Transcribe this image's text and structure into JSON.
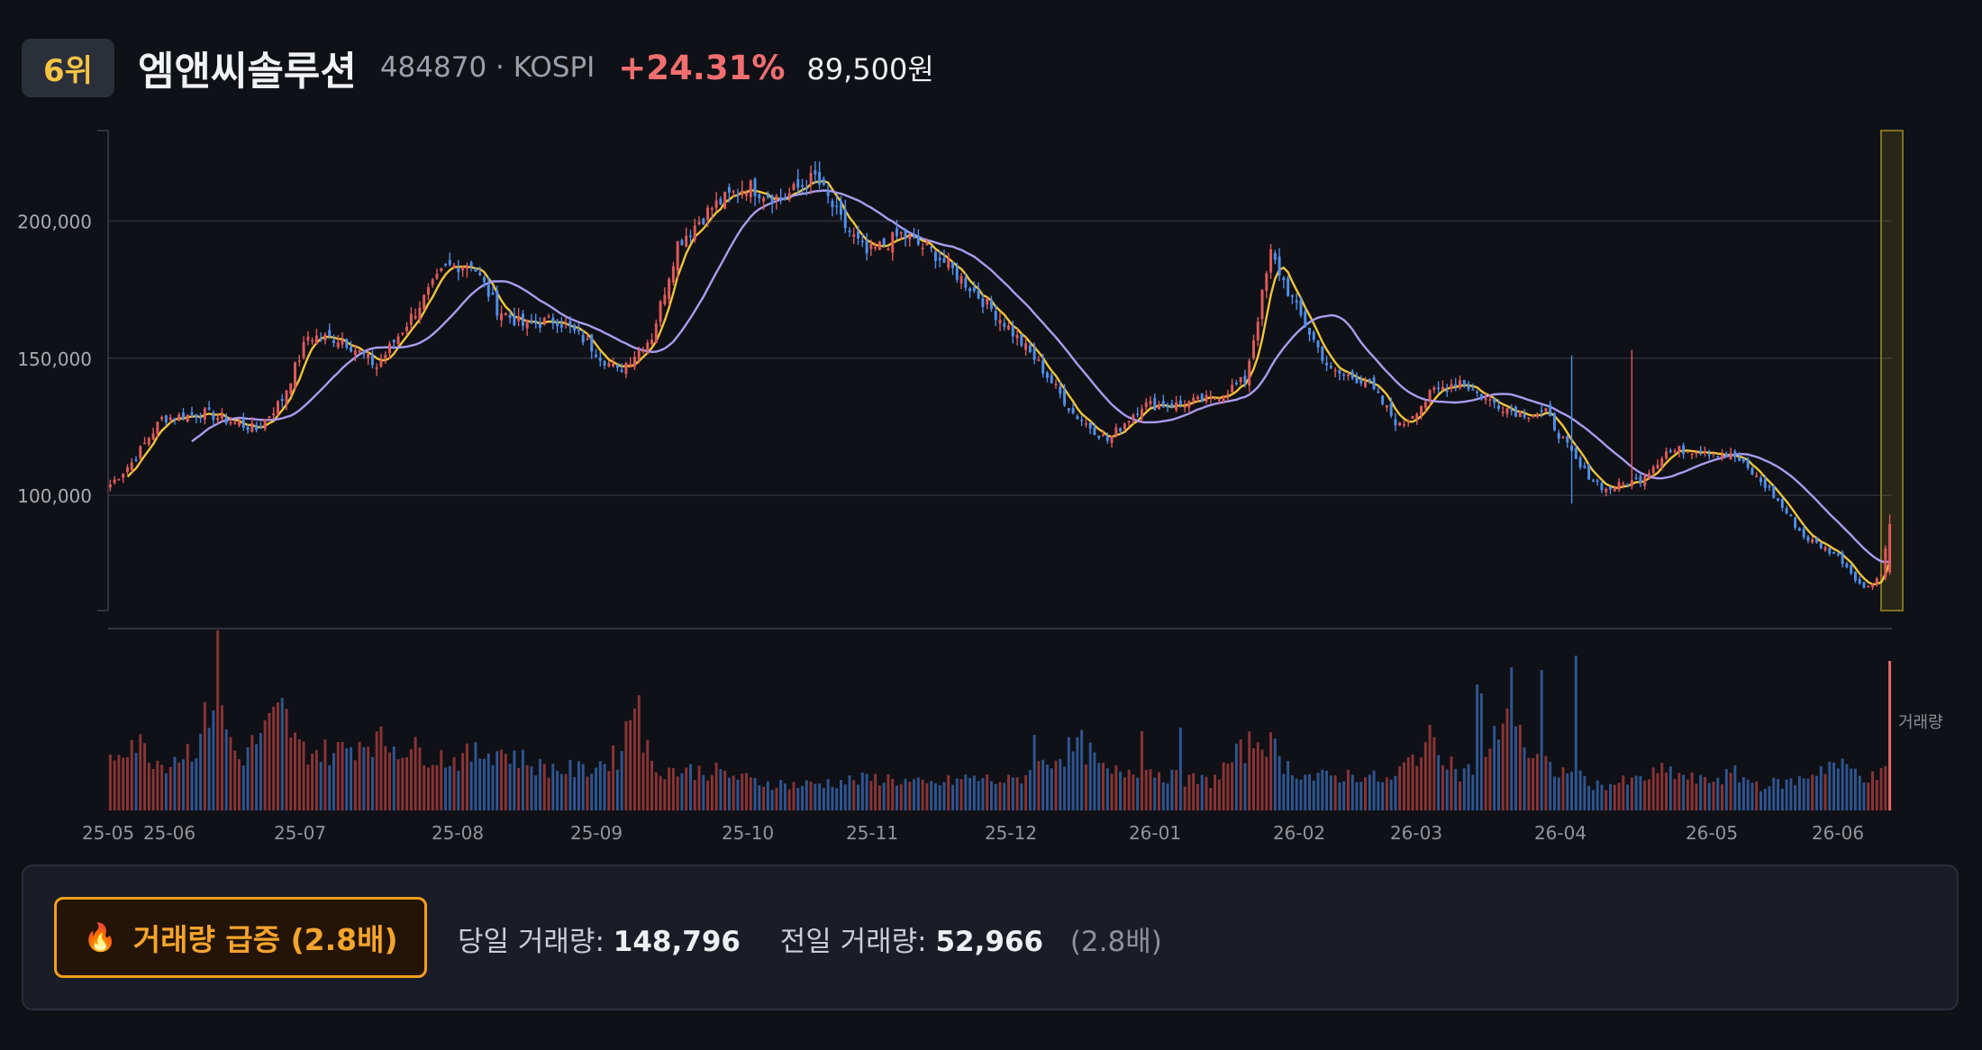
{
  "header": {
    "rank": "6위",
    "name": "엠앤씨솔루션",
    "code": "484870 · KOSPI",
    "change": "+24.31%",
    "price": "89,500원"
  },
  "colors": {
    "up": "#e05a5a",
    "down": "#4f8fea",
    "ma_short": "#f0c43a",
    "ma_long": "#a99cf0"
  },
  "chart_data": {
    "type": "candlestick",
    "x_ticks": [
      "25-05",
      "25-06",
      "25-07",
      "25-08",
      "25-09",
      "25-10",
      "25-11",
      "25-12",
      "26-01",
      "26-02",
      "26-03",
      "26-04",
      "26-05",
      "26-06"
    ],
    "y_ticks": [
      100000,
      150000,
      200000
    ],
    "y_tick_labels": [
      "100,000",
      "150,000",
      "200,000"
    ],
    "ylim": [
      58000,
      233000
    ],
    "volume_label": "거래량",
    "highlight_last": true,
    "series": [
      {
        "name": "MA-short",
        "type": "line"
      },
      {
        "name": "MA-long",
        "type": "line"
      }
    ],
    "close_anchors": [
      [
        0,
        104000
      ],
      [
        5,
        112000
      ],
      [
        12,
        128000
      ],
      [
        22,
        130000
      ],
      [
        34,
        124000
      ],
      [
        40,
        135000
      ],
      [
        46,
        158000
      ],
      [
        54,
        157000
      ],
      [
        62,
        147000
      ],
      [
        70,
        165000
      ],
      [
        78,
        183000
      ],
      [
        84,
        185000
      ],
      [
        90,
        168000
      ],
      [
        96,
        162000
      ],
      [
        104,
        164000
      ],
      [
        110,
        157000
      ],
      [
        118,
        145000
      ],
      [
        126,
        158000
      ],
      [
        132,
        192000
      ],
      [
        140,
        205000
      ],
      [
        148,
        213000
      ],
      [
        156,
        208000
      ],
      [
        164,
        216000
      ],
      [
        170,
        200000
      ],
      [
        176,
        188000
      ],
      [
        184,
        195000
      ],
      [
        192,
        188000
      ],
      [
        200,
        176000
      ],
      [
        208,
        163000
      ],
      [
        216,
        148000
      ],
      [
        224,
        130000
      ],
      [
        232,
        120000
      ],
      [
        240,
        133000
      ],
      [
        248,
        133000
      ],
      [
        256,
        135000
      ],
      [
        264,
        142000
      ],
      [
        270,
        188000
      ],
      [
        276,
        168000
      ],
      [
        284,
        145000
      ],
      [
        292,
        142000
      ],
      [
        300,
        125000
      ],
      [
        308,
        138000
      ],
      [
        314,
        142000
      ],
      [
        320,
        135000
      ],
      [
        328,
        130000
      ],
      [
        334,
        130000
      ],
      [
        342,
        110000
      ],
      [
        348,
        102000
      ],
      [
        356,
        106000
      ],
      [
        362,
        116000
      ],
      [
        370,
        117000
      ],
      [
        378,
        114000
      ],
      [
        386,
        102000
      ],
      [
        394,
        85000
      ],
      [
        402,
        78000
      ],
      [
        408,
        66000
      ],
      [
        412,
        71000
      ],
      [
        414,
        90000
      ]
    ],
    "volume_anchors": [
      [
        0,
        0.3
      ],
      [
        5,
        0.4
      ],
      [
        12,
        0.26
      ],
      [
        20,
        0.36
      ],
      [
        24,
        0.62
      ],
      [
        27,
        0.45
      ],
      [
        30,
        0.28
      ],
      [
        40,
        0.55
      ],
      [
        44,
        0.34
      ],
      [
        52,
        0.32
      ],
      [
        60,
        0.4
      ],
      [
        70,
        0.34
      ],
      [
        80,
        0.28
      ],
      [
        90,
        0.34
      ],
      [
        100,
        0.24
      ],
      [
        110,
        0.22
      ],
      [
        118,
        0.3
      ],
      [
        122,
        0.6
      ],
      [
        126,
        0.24
      ],
      [
        132,
        0.22
      ],
      [
        140,
        0.22
      ],
      [
        150,
        0.16
      ],
      [
        160,
        0.14
      ],
      [
        170,
        0.16
      ],
      [
        180,
        0.18
      ],
      [
        190,
        0.14
      ],
      [
        200,
        0.18
      ],
      [
        210,
        0.16
      ],
      [
        220,
        0.3
      ],
      [
        226,
        0.36
      ],
      [
        232,
        0.2
      ],
      [
        240,
        0.24
      ],
      [
        248,
        0.18
      ],
      [
        256,
        0.16
      ],
      [
        262,
        0.3
      ],
      [
        268,
        0.42
      ],
      [
        274,
        0.24
      ],
      [
        280,
        0.18
      ],
      [
        290,
        0.2
      ],
      [
        298,
        0.16
      ],
      [
        304,
        0.32
      ],
      [
        308,
        0.4
      ],
      [
        314,
        0.2
      ],
      [
        320,
        0.26
      ],
      [
        326,
        0.66
      ],
      [
        330,
        0.3
      ],
      [
        336,
        0.22
      ],
      [
        340,
        0.2
      ],
      [
        346,
        0.14
      ],
      [
        354,
        0.16
      ],
      [
        362,
        0.22
      ],
      [
        370,
        0.16
      ],
      [
        378,
        0.2
      ],
      [
        384,
        0.14
      ],
      [
        392,
        0.16
      ],
      [
        400,
        0.26
      ],
      [
        406,
        0.22
      ],
      [
        410,
        0.18
      ],
      [
        414,
        0.22
      ]
    ],
    "volume_spikes": [
      [
        25,
        1.0
      ],
      [
        123,
        0.64
      ],
      [
        333,
        0.78
      ],
      [
        318,
        0.7
      ],
      [
        319,
        0.65
      ],
      [
        341,
        0.86
      ],
      [
        414,
        0.83
      ],
      [
        240,
        0.44
      ],
      [
        249,
        0.46
      ],
      [
        215,
        0.42
      ]
    ]
  },
  "volume_info": {
    "badge_icon": "🔥",
    "badge_label": "거래량 급증 (2.8배)",
    "today_label": "당일 거래량:",
    "today_value": "148,796",
    "prev_label": "전일 거래량:",
    "prev_value": "52,966",
    "ratio": "(2.8배)"
  }
}
